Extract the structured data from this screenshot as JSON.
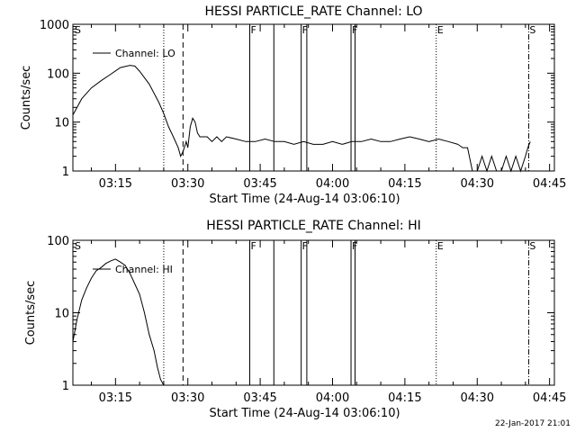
{
  "footer_stamp": "22-Jan-2017 21:01",
  "chart_data": [
    {
      "type": "line",
      "title": "HESSI PARTICLE_RATE Channel: LO",
      "xlabel": "Start Time (24-Aug-14 03:06:10)",
      "ylabel": "Counts/sec",
      "yscale": "log",
      "xlim": [
        "03:06:10",
        "04:46:00"
      ],
      "ylim": [
        1,
        1000
      ],
      "x_ticks": [
        "03:15",
        "03:30",
        "03:45",
        "04:00",
        "04:15",
        "04:30",
        "04:45"
      ],
      "y_ticks": [
        "1",
        "10",
        "100",
        "1000"
      ],
      "legend": {
        "position": "top-left",
        "entries": [
          "Channel: LO"
        ]
      },
      "series": [
        {
          "name": "Channel: LO",
          "x": [
            "03:06:10",
            "03:08",
            "03:10",
            "03:12",
            "03:14",
            "03:16",
            "03:18",
            "03:19",
            "03:20",
            "03:22",
            "03:24",
            "03:25",
            "03:26",
            "03:27",
            "03:28",
            "03:28:30",
            "03:29",
            "03:29:40",
            "03:30",
            "03:30:30",
            "03:31",
            "03:31:30",
            "03:32",
            "03:32:30",
            "03:33",
            "03:34",
            "03:35",
            "03:36",
            "03:37",
            "03:38",
            "03:40",
            "03:42",
            "03:44",
            "03:46",
            "03:48",
            "03:50",
            "03:52",
            "03:54",
            "03:56",
            "03:58",
            "04:00",
            "04:02",
            "04:04",
            "04:06",
            "04:08",
            "04:10",
            "04:12",
            "04:14",
            "04:16",
            "04:18",
            "04:20",
            "04:22",
            "04:24",
            "04:26",
            "04:27",
            "04:28",
            "04:29",
            "04:30",
            "04:31",
            "04:32",
            "04:33",
            "04:34",
            "04:35",
            "04:36",
            "04:37",
            "04:38",
            "04:39",
            "04:40",
            "04:40:30",
            "04:41"
          ],
          "values": [
            14,
            30,
            50,
            70,
            95,
            130,
            145,
            140,
            110,
            60,
            25,
            15,
            8,
            5,
            3,
            2,
            2.5,
            4,
            3,
            8,
            12,
            10,
            6,
            5,
            5,
            5,
            4,
            5,
            4,
            5,
            4.5,
            4,
            4,
            4.5,
            4,
            4,
            3.5,
            4,
            3.5,
            3.5,
            4,
            3.5,
            4,
            4,
            4.5,
            4,
            4,
            4.5,
            5,
            4.5,
            4,
            4.5,
            4,
            3.5,
            3,
            3,
            1,
            1,
            2,
            1,
            2,
            1,
            1,
            2,
            1,
            2,
            1,
            2,
            3,
            4
          ]
        }
      ],
      "markers": [
        {
          "time": "03:25:00",
          "style": "dotted",
          "label": ""
        },
        {
          "time": "03:29:00",
          "style": "dashed",
          "label": ""
        },
        {
          "time": "03:42:50",
          "style": "solid",
          "label": "F"
        },
        {
          "time": "03:47:50",
          "style": "solid",
          "label": ""
        },
        {
          "time": "03:53:30",
          "style": "solid",
          "label": "F"
        },
        {
          "time": "03:54:40",
          "style": "solid",
          "label": ""
        },
        {
          "time": "04:03:50",
          "style": "solid",
          "label": "F"
        },
        {
          "time": "04:04:40",
          "style": "solid",
          "label": ""
        },
        {
          "time": "04:21:30",
          "style": "dotted",
          "label": "E"
        },
        {
          "time": "04:40:40",
          "style": "dashdot",
          "label": "S"
        }
      ],
      "corner_label": "S"
    },
    {
      "type": "line",
      "title": "HESSI PARTICLE_RATE Channel: HI",
      "xlabel": "Start Time (24-Aug-14 03:06:10)",
      "ylabel": "Counts/sec",
      "yscale": "log",
      "xlim": [
        "03:06:10",
        "04:46:00"
      ],
      "ylim": [
        1,
        100
      ],
      "x_ticks": [
        "03:15",
        "03:30",
        "03:45",
        "04:00",
        "04:15",
        "04:30",
        "04:45"
      ],
      "y_ticks": [
        "1",
        "10",
        "100"
      ],
      "legend": {
        "position": "top-left",
        "entries": [
          "Channel: HI"
        ]
      },
      "series": [
        {
          "name": "Channel: HI",
          "x": [
            "03:06:10",
            "03:07",
            "03:08",
            "03:09",
            "03:10",
            "03:11",
            "03:12",
            "03:13",
            "03:14",
            "03:15",
            "03:16",
            "03:17",
            "03:18",
            "03:19",
            "03:20",
            "03:21",
            "03:22",
            "03:23",
            "03:23:40",
            "03:24:20",
            "03:25"
          ],
          "values": [
            4,
            8,
            15,
            22,
            30,
            38,
            42,
            48,
            52,
            55,
            50,
            45,
            35,
            25,
            18,
            10,
            5,
            3,
            1.8,
            1.2,
            1
          ]
        }
      ],
      "markers": [
        {
          "time": "03:25:00",
          "style": "dotted",
          "label": ""
        },
        {
          "time": "03:29:00",
          "style": "dashed",
          "label": ""
        },
        {
          "time": "03:42:50",
          "style": "solid",
          "label": "F"
        },
        {
          "time": "03:47:50",
          "style": "solid",
          "label": ""
        },
        {
          "time": "03:53:30",
          "style": "solid",
          "label": "F"
        },
        {
          "time": "03:54:40",
          "style": "solid",
          "label": ""
        },
        {
          "time": "04:03:50",
          "style": "solid",
          "label": "F"
        },
        {
          "time": "04:04:40",
          "style": "solid",
          "label": ""
        },
        {
          "time": "04:21:30",
          "style": "dotted",
          "label": "E"
        },
        {
          "time": "04:40:40",
          "style": "dashdot",
          "label": "S"
        }
      ],
      "corner_label": "S"
    }
  ]
}
